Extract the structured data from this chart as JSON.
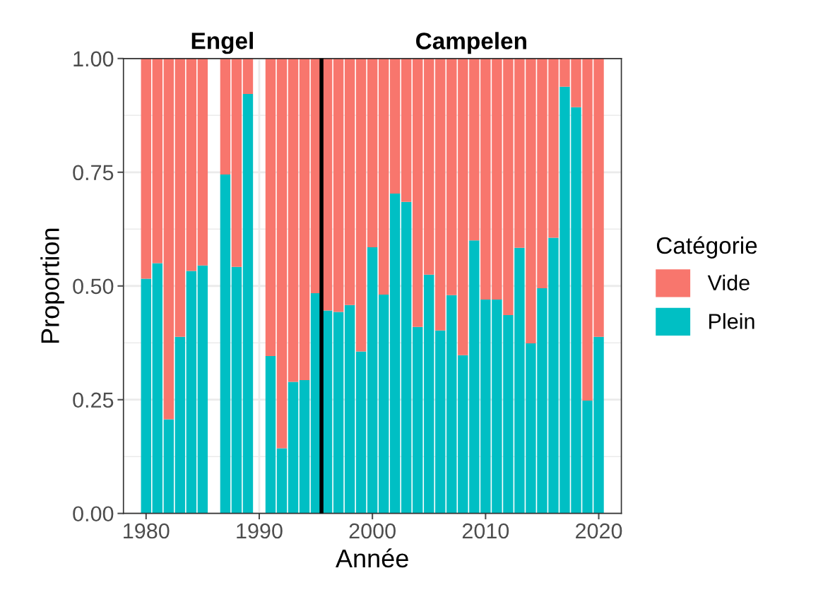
{
  "chart_data": {
    "type": "bar",
    "stacked": true,
    "xlabel": "Année",
    "ylabel": "Proportion",
    "legend_title": "Catégorie",
    "legend": "right",
    "x": [
      1980,
      1981,
      1982,
      1983,
      1984,
      1985,
      1987,
      1988,
      1989,
      1991,
      1992,
      1993,
      1994,
      1995,
      1996,
      1997,
      1998,
      1999,
      2000,
      2001,
      2002,
      2003,
      2004,
      2005,
      2006,
      2007,
      2008,
      2009,
      2010,
      2011,
      2012,
      2013,
      2014,
      2015,
      2016,
      2017,
      2018,
      2019,
      2020
    ],
    "series": [
      {
        "name": "Plein",
        "color": "#00bfc4",
        "values": [
          0.516,
          0.55,
          0.207,
          0.388,
          0.533,
          0.545,
          0.745,
          0.542,
          0.922,
          0.346,
          0.143,
          0.289,
          0.293,
          0.484,
          0.446,
          0.443,
          0.458,
          0.356,
          0.585,
          0.481,
          0.703,
          0.685,
          0.41,
          0.525,
          0.402,
          0.48,
          0.348,
          0.6,
          0.47,
          0.47,
          0.436,
          0.584,
          0.374,
          0.495,
          0.606,
          0.938,
          0.893,
          0.248,
          0.388
        ]
      },
      {
        "name": "Vide",
        "color": "#f8766d",
        "values": [
          0.484,
          0.45,
          0.793,
          0.612,
          0.467,
          0.455,
          0.255,
          0.458,
          0.078,
          0.654,
          0.857,
          0.711,
          0.707,
          0.516,
          0.554,
          0.557,
          0.542,
          0.644,
          0.415,
          0.519,
          0.297,
          0.315,
          0.59,
          0.475,
          0.598,
          0.52,
          0.652,
          0.4,
          0.53,
          0.53,
          0.564,
          0.416,
          0.626,
          0.505,
          0.394,
          0.062,
          0.107,
          0.752,
          0.612
        ]
      }
    ],
    "xlim": [
      1978,
      2022
    ],
    "xticks": [
      1980,
      1990,
      2000,
      2010,
      2020
    ],
    "ylim": [
      0,
      1
    ],
    "yticks": [
      {
        "value": 0,
        "label": "0.00"
      },
      {
        "value": 0.25,
        "label": "0.25"
      },
      {
        "value": 0.5,
        "label": "0.50"
      },
      {
        "value": 0.75,
        "label": "0.75"
      },
      {
        "value": 1,
        "label": "1.00"
      }
    ],
    "grid": true,
    "ref_lines": [
      {
        "axis": "x",
        "value": 1995.5,
        "color": "#000000"
      }
    ],
    "annotations": [
      "Engel",
      "Campelen"
    ]
  }
}
